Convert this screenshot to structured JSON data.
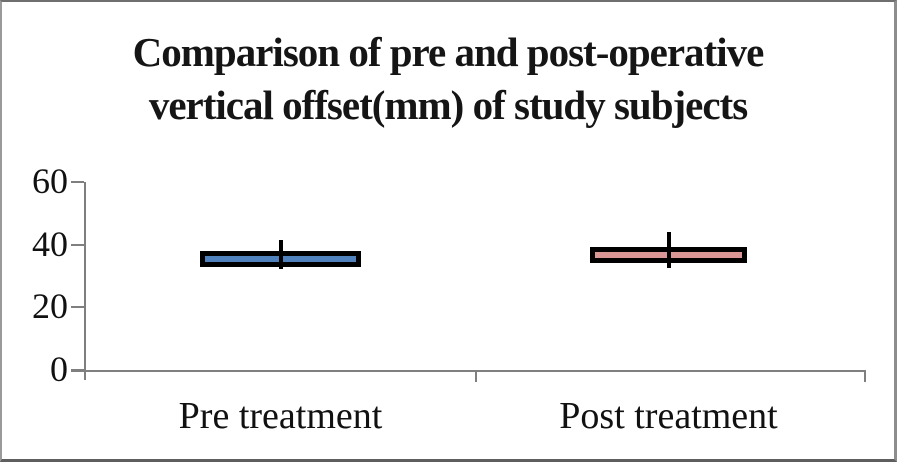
{
  "title": {
    "line1": "Comparison of pre and post-operative",
    "line2": "vertical offset(mm) of study subjects"
  },
  "colors": {
    "pre_fill": "#4F81BD",
    "post_fill": "#D99694",
    "box_border": "#000000",
    "axis_line": "#7F7F7F",
    "text": "#111111"
  },
  "chart_data": {
    "type": "boxplot",
    "title": "Comparison of pre and post-operative vertical offset(mm) of study subjects",
    "xlabel": "",
    "ylabel": "",
    "ylim": [
      0,
      60
    ],
    "yticks": [
      0,
      20,
      40,
      60
    ],
    "grid": false,
    "legend": "none",
    "categories": [
      "Pre treatment",
      "Post treatment"
    ],
    "series": [
      {
        "name": "Pre treatment",
        "whisker_low": 32.2,
        "q1": 33,
        "median": 35.5,
        "q3": 38,
        "whisker_high": 41.5,
        "fill": "#4F81BD"
      },
      {
        "name": "Post treatment",
        "whisker_low": 32.5,
        "q1": 34.3,
        "median": 36.7,
        "q3": 39.3,
        "whisker_high": 44,
        "fill": "#D99694"
      }
    ]
  }
}
